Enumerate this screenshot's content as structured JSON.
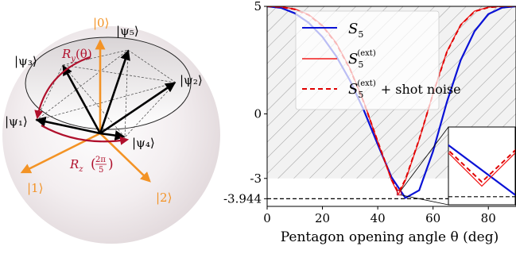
{
  "bloch": {
    "state_labels": {
      "psi1": "|ψ₁⟩",
      "psi2": "|ψ₂⟩",
      "psi3": "|ψ₃⟩",
      "psi4": "|ψ₄⟩",
      "psi5": "|ψ₅⟩",
      "zero": "|0⟩",
      "one": "|1⟩",
      "two": "|2⟩"
    },
    "ry_label": "R",
    "ry_sub": "y",
    "ry_arg": "(θ)",
    "rz_label": "R",
    "rz_sub": "z",
    "rz_arg_num": "2π",
    "rz_arg_den": "5",
    "colors": {
      "basis": "#f39325",
      "rotation": "#b0102c",
      "vector": "#000000",
      "sphere": "#e9e2e4"
    }
  },
  "chart_data": {
    "type": "line",
    "xlabel": "Pentagon opening angle θ (deg)",
    "xlim": [
      0,
      90
    ],
    "ylim": [
      -4.3,
      5
    ],
    "x_ticks": [
      0,
      20,
      40,
      60,
      80
    ],
    "y_ticks": [
      {
        "value": 5,
        "label": "5"
      },
      {
        "value": 0,
        "label": "0"
      },
      {
        "value": -3,
        "label": "-3"
      },
      {
        "value": -3.944,
        "label": "-3.944"
      }
    ],
    "bound": -3.944,
    "hatched_region": "y > -3",
    "legend": [
      {
        "series": "S5",
        "label": "S",
        "sub": "5",
        "sup": "",
        "suffix": "",
        "style": "solid",
        "color": "#0a12d6"
      },
      {
        "series": "S5ext",
        "label": "S",
        "sub": "5",
        "sup": "(ext)",
        "suffix": "",
        "style": "solid",
        "color": "#f21c1c"
      },
      {
        "series": "S5ext_noise",
        "label": "S",
        "sub": "5",
        "sup": "(ext)",
        "suffix": "+ shot noise",
        "style": "dashed",
        "color": "#e00000"
      }
    ],
    "series": [
      {
        "name": "S5",
        "color": "#0a12d6",
        "x": [
          0,
          5,
          10,
          15,
          20,
          25,
          30,
          35,
          40,
          45,
          50,
          55,
          60,
          65,
          70,
          75,
          80,
          85,
          90
        ],
        "y": [
          5.0,
          4.93,
          4.68,
          4.24,
          3.58,
          2.68,
          1.54,
          0.16,
          -1.42,
          -2.95,
          -3.91,
          -3.55,
          -1.74,
          0.55,
          2.5,
          3.84,
          4.64,
          4.94,
          5.0
        ]
      },
      {
        "name": "S5ext",
        "color": "#f21c1c",
        "x": [
          0,
          5,
          10,
          15,
          20,
          25,
          30,
          35,
          40,
          45,
          47.5,
          50,
          55,
          60,
          65,
          70,
          75,
          80,
          85,
          90
        ],
        "y": [
          5.0,
          4.98,
          4.88,
          4.62,
          4.12,
          3.3,
          2.1,
          0.55,
          -1.3,
          -3.1,
          -3.74,
          -3.1,
          -1.2,
          0.95,
          2.9,
          4.15,
          4.78,
          4.96,
          5.0,
          5.0
        ]
      },
      {
        "name": "S5ext_noise",
        "color": "#e00000",
        "x": [
          0,
          5,
          10,
          15,
          20,
          25,
          30,
          35,
          40,
          45,
          47.5,
          50,
          55,
          60,
          65,
          70,
          75,
          80,
          85,
          90
        ],
        "y": [
          5.0,
          4.97,
          4.86,
          4.6,
          4.09,
          3.27,
          2.08,
          0.53,
          -1.28,
          -3.05,
          -3.66,
          -3.05,
          -1.18,
          0.93,
          2.88,
          4.13,
          4.76,
          4.95,
          5.0,
          5.0
        ]
      }
    ],
    "inset": {
      "xlim": [
        45,
        50
      ],
      "ylim": [
        -4.1,
        -2.6
      ]
    }
  }
}
